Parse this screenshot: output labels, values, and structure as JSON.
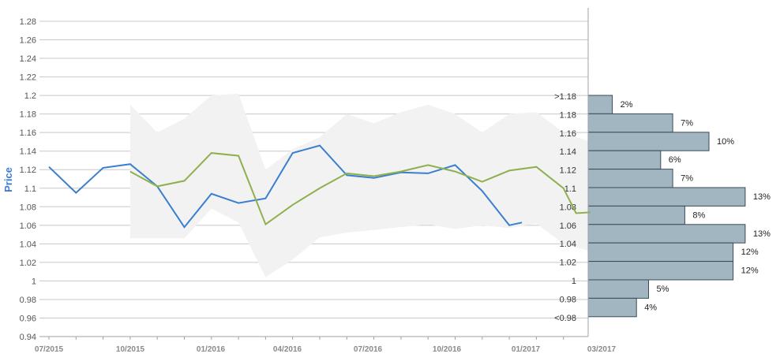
{
  "chart_data": {
    "type": "line",
    "ylabel": "Price",
    "ylim": [
      0.94,
      1.28
    ],
    "yticks": [
      "0.94",
      "0.96",
      "0.98",
      "1",
      "1.02",
      "1.04",
      "1.06",
      "1.08",
      "1.1",
      "1.12",
      "1.14",
      "1.16",
      "1.18",
      "1.2",
      "1.22",
      "1.24",
      "1.26",
      "1.28"
    ],
    "xticks": [
      "07/2015",
      "10/2015",
      "01/2016",
      "04/2016",
      "07/2016",
      "10/2016",
      "01/2017",
      "03/2017"
    ],
    "grid": true,
    "series": [
      {
        "color": "#3a7fcf",
        "x": [
          "2015-07",
          "2015-08",
          "2015-09",
          "2015-10",
          "2015-11",
          "2015-12",
          "2016-01",
          "2016-02",
          "2016-03",
          "2016-04",
          "2016-05",
          "2016-06",
          "2016-07",
          "2016-08",
          "2016-09",
          "2016-10",
          "2016-11",
          "2016-12",
          "2016-12-15"
        ],
        "values": [
          1.123,
          1.095,
          1.122,
          1.126,
          1.102,
          1.058,
          1.094,
          1.084,
          1.089,
          1.138,
          1.146,
          1.114,
          1.111,
          1.117,
          1.116,
          1.125,
          1.097,
          1.06,
          1.063
        ]
      },
      {
        "color": "#8fb04e",
        "x": [
          "2015-10",
          "2015-11",
          "2015-12",
          "2016-01",
          "2016-02",
          "2016-03",
          "2016-04",
          "2016-05",
          "2016-06",
          "2016-07",
          "2016-08",
          "2016-09",
          "2016-10",
          "2016-11",
          "2016-12",
          "2017-01",
          "2017-02",
          "2017-02-15",
          "2017-03"
        ],
        "values": [
          1.118,
          1.102,
          1.108,
          1.138,
          1.135,
          1.061,
          1.082,
          1.1,
          1.116,
          1.113,
          1.118,
          1.125,
          1.118,
          1.107,
          1.119,
          1.123,
          1.1,
          1.073,
          1.074
        ]
      }
    ],
    "band": {
      "color": "#f2f2f2",
      "x": [
        "2015-10",
        "2015-11",
        "2015-12",
        "2016-01",
        "2016-02",
        "2016-03",
        "2016-04",
        "2016-05",
        "2016-06",
        "2016-07",
        "2016-08",
        "2016-09",
        "2016-10",
        "2016-11",
        "2016-12",
        "2017-01",
        "2017-02",
        "2017-03"
      ],
      "upper": [
        1.19,
        1.16,
        1.175,
        1.2,
        1.202,
        1.12,
        1.142,
        1.155,
        1.18,
        1.17,
        1.182,
        1.19,
        1.18,
        1.16,
        1.18,
        1.182,
        1.16,
        1.15
      ],
      "lower": [
        1.046,
        1.046,
        1.046,
        1.078,
        1.063,
        1.004,
        1.023,
        1.047,
        1.052,
        1.055,
        1.058,
        1.061,
        1.056,
        1.06,
        1.057,
        1.062,
        1.04,
        1.032
      ]
    },
    "histogram": {
      "bar_color": "#a2b6c2",
      "bins": [
        {
          "label": ">1.18",
          "percent": "2%",
          "value": 2
        },
        {
          "label": "1.18",
          "percent": "7%",
          "value": 7
        },
        {
          "label": "1.16",
          "percent": "10%",
          "value": 10
        },
        {
          "label": "1.14",
          "percent": "6%",
          "value": 6
        },
        {
          "label": "1.12",
          "percent": "7%",
          "value": 7
        },
        {
          "label": "1.1",
          "percent": "13%",
          "value": 13
        },
        {
          "label": "1.08",
          "percent": "8%",
          "value": 8
        },
        {
          "label": "1.06",
          "percent": "13%",
          "value": 13
        },
        {
          "label": "1.04",
          "percent": "12%",
          "value": 12
        },
        {
          "label": "1.02",
          "percent": "12%",
          "value": 12
        },
        {
          "label": "1",
          "percent": "5%",
          "value": 5
        },
        {
          "label": "0.98",
          "percent": "4%",
          "value": 4
        },
        {
          "label": "<0.98",
          "percent": "",
          "value": 0
        }
      ]
    }
  }
}
